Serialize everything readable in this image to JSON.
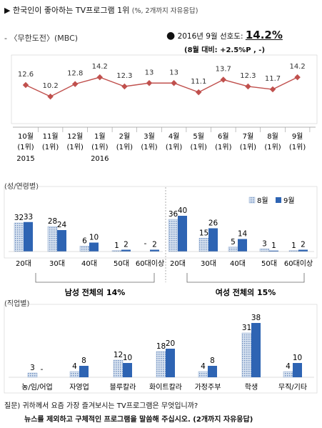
{
  "title": "▶ 한국인이 좋아하는 TV프로그램 1위",
  "title_sub": "(%, 2개까지 자유응답)",
  "series_label": "- 〈무한도전〉(MBC)",
  "highlight": {
    "bullet": "●",
    "label": "2016년 9월 선호도:",
    "value": "14.2%",
    "change": "(8월 대비: +2.5%P , -)"
  },
  "gender_section_label": "(성/연령별)",
  "occupation_section_label": "(직업별)",
  "question_line1": "질문) 귀하께서 요즘 가장 즐겨보시는 TV프로그램은 무엇입니까?",
  "question_line2": "뉴스를 제외하고 구체적인 프로그램을 말씀해 주십시오. (2개까지 자유응답)",
  "colors": {
    "line": "#c0504d",
    "aug": "#b7cde6",
    "sep": "#2e64b3",
    "axis": "#999999"
  },
  "chart_data": [
    {
      "type": "line",
      "title": "",
      "series": [
        {
          "name": "〈무한도전〉(MBC)",
          "values": [
            12.6,
            10.2,
            12.8,
            14.2,
            12.3,
            13.0,
            13.0,
            11.1,
            13.7,
            12.3,
            11.7,
            14.2
          ]
        }
      ],
      "categories": [
        "10월",
        "11월",
        "12월",
        "1월",
        "2월",
        "3월",
        "4월",
        "5월",
        "6월",
        "7월",
        "8월",
        "9월"
      ],
      "rank_labels": [
        "(1위)",
        "(1위)",
        "(1위)",
        "(1위)",
        "(1위)",
        "(1위)",
        "(1위)",
        "(1위)",
        "(1위)",
        "(1위)",
        "(1위)",
        "(1위)"
      ],
      "year_labels": [
        {
          "index": 0,
          "text": "2015"
        },
        {
          "index": 3,
          "text": "2016"
        }
      ],
      "ylim": [
        8,
        16
      ],
      "grid": false
    },
    {
      "type": "bar",
      "groups": [
        {
          "categories": [
            "20대",
            "30대",
            "40대",
            "50대",
            "60대이상"
          ],
          "caption": "남성 전체의 14%",
          "series": [
            {
              "name": "8월",
              "values": [
                32,
                28,
                6,
                1,
                null
              ]
            },
            {
              "name": "9월",
              "values": [
                33,
                24,
                10,
                2,
                2
              ]
            }
          ]
        },
        {
          "categories": [
            "20대",
            "30대",
            "40대",
            "50대",
            "60대이상"
          ],
          "caption": "여성 전체의 15%",
          "series": [
            {
              "name": "8월",
              "values": [
                36,
                15,
                5,
                3,
                1
              ]
            },
            {
              "name": "9월",
              "values": [
                40,
                26,
                14,
                1,
                2
              ]
            }
          ]
        }
      ],
      "missing_label": "-",
      "legend": {
        "position": "top-right",
        "items": [
          "8월",
          "9월"
        ]
      },
      "ylim": [
        0,
        45
      ],
      "grid": false
    },
    {
      "type": "bar",
      "categories": [
        "농/임/어업",
        "자영업",
        "블루칼라",
        "화이트칼라",
        "가정주부",
        "학생",
        "무직/기타"
      ],
      "series": [
        {
          "name": "8월",
          "values": [
            3,
            4,
            12,
            18,
            4,
            31,
            4
          ]
        },
        {
          "name": "9월",
          "values": [
            null,
            8,
            10,
            20,
            8,
            38,
            10
          ]
        }
      ],
      "missing_label": "-",
      "ylim": [
        0,
        42
      ],
      "grid": false
    }
  ]
}
